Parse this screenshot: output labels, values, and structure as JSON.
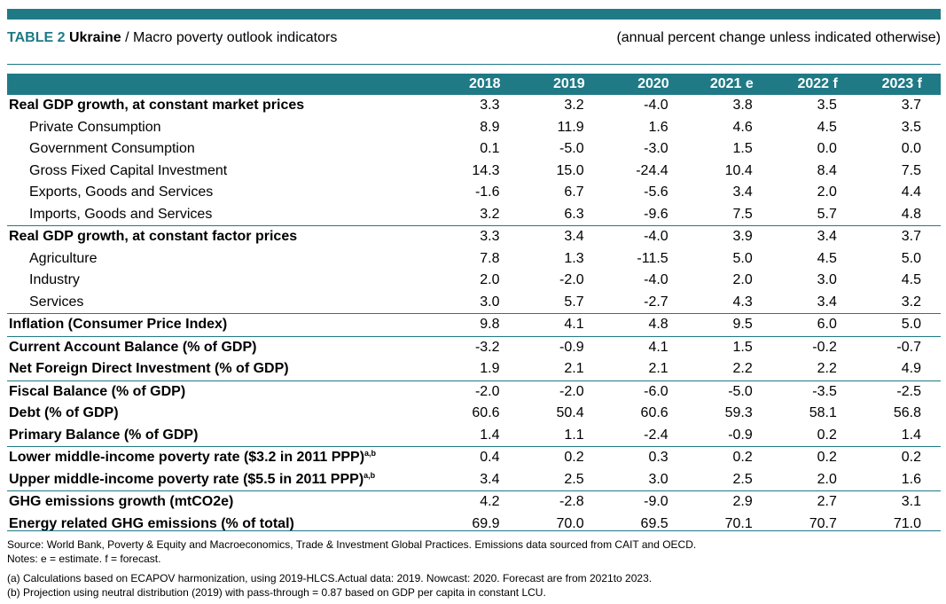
{
  "caption": {
    "table_label": "TABLE 2",
    "country": "Ukraine",
    "separator": " / ",
    "title": "Macro poverty outlook indicators",
    "units_note": "(annual percent change unless indicated otherwise)"
  },
  "columns": [
    "2018",
    "2019",
    "2020",
    "2021 e",
    "2022 f",
    "2023 f"
  ],
  "rows": [
    {
      "label": "Real GDP growth, at constant market prices",
      "sup": "",
      "values": [
        "3.3",
        "3.2",
        "-4.0",
        "3.8",
        "3.5",
        "3.7"
      ]
    },
    {
      "label": "Private Consumption",
      "sup": "",
      "values": [
        "8.9",
        "11.9",
        "1.6",
        "4.6",
        "4.5",
        "3.5"
      ]
    },
    {
      "label": "Government Consumption",
      "sup": "",
      "values": [
        "0.1",
        "-5.0",
        "-3.0",
        "1.5",
        "0.0",
        "0.0"
      ]
    },
    {
      "label": "Gross Fixed Capital Investment",
      "sup": "",
      "values": [
        "14.3",
        "15.0",
        "-24.4",
        "10.4",
        "8.4",
        "7.5"
      ]
    },
    {
      "label": "Exports, Goods and Services",
      "sup": "",
      "values": [
        "-1.6",
        "6.7",
        "-5.6",
        "3.4",
        "2.0",
        "4.4"
      ]
    },
    {
      "label": "Imports, Goods and Services",
      "sup": "",
      "values": [
        "3.2",
        "6.3",
        "-9.6",
        "7.5",
        "5.7",
        "4.8"
      ]
    },
    {
      "label": "Real GDP growth, at constant factor prices",
      "sup": "",
      "values": [
        "3.3",
        "3.4",
        "-4.0",
        "3.9",
        "3.4",
        "3.7"
      ]
    },
    {
      "label": "Agriculture",
      "sup": "",
      "values": [
        "7.8",
        "1.3",
        "-11.5",
        "5.0",
        "4.5",
        "5.0"
      ]
    },
    {
      "label": "Industry",
      "sup": "",
      "values": [
        "2.0",
        "-2.0",
        "-4.0",
        "2.0",
        "3.0",
        "4.5"
      ]
    },
    {
      "label": "Services",
      "sup": "",
      "values": [
        "3.0",
        "5.7",
        "-2.7",
        "4.3",
        "3.4",
        "3.2"
      ]
    },
    {
      "label": "Inflation (Consumer Price Index)",
      "sup": "",
      "values": [
        "9.8",
        "4.1",
        "4.8",
        "9.5",
        "6.0",
        "5.0"
      ]
    },
    {
      "label": "Current Account Balance (% of GDP)",
      "sup": "",
      "values": [
        "-3.2",
        "-0.9",
        "4.1",
        "1.5",
        "-0.2",
        "-0.7"
      ]
    },
    {
      "label": "Net Foreign Direct Investment (% of GDP)",
      "sup": "",
      "values": [
        "1.9",
        "2.1",
        "2.1",
        "2.2",
        "2.2",
        "4.9"
      ]
    },
    {
      "label": "Fiscal Balance (% of GDP)",
      "sup": "",
      "values": [
        "-2.0",
        "-2.0",
        "-6.0",
        "-5.0",
        "-3.5",
        "-2.5"
      ]
    },
    {
      "label": "Debt (% of GDP)",
      "sup": "",
      "values": [
        "60.6",
        "50.4",
        "60.6",
        "59.3",
        "58.1",
        "56.8"
      ]
    },
    {
      "label": "Primary Balance (% of GDP)",
      "sup": "",
      "values": [
        "1.4",
        "1.1",
        "-2.4",
        "-0.9",
        "0.2",
        "1.4"
      ]
    },
    {
      "label": "Lower middle-income poverty rate ($3.2 in 2011 PPP)",
      "sup": "a,b",
      "values": [
        "0.4",
        "0.2",
        "0.3",
        "0.2",
        "0.2",
        "0.2"
      ]
    },
    {
      "label": "Upper middle-income poverty rate ($5.5 in 2011 PPP)",
      "sup": "a,b",
      "values": [
        "3.4",
        "2.5",
        "3.0",
        "2.5",
        "2.0",
        "1.6"
      ]
    },
    {
      "label": "GHG emissions growth (mtCO2e)",
      "sup": "",
      "values": [
        "4.2",
        "-2.8",
        "-9.0",
        "2.9",
        "2.7",
        "3.1"
      ]
    },
    {
      "label": "Energy related GHG emissions (% of total)",
      "sup": "",
      "values": [
        "69.9",
        "70.0",
        "69.5",
        "70.1",
        "70.7",
        "71.0"
      ]
    }
  ],
  "notes": {
    "source": "Source: World Bank, Poverty & Equity and Macroeconomics, Trade & Investment Global Practices. Emissions data sourced from CAIT and OECD.",
    "abbrev": "Notes: e = estimate. f = forecast.",
    "note_a": "(a) Calculations based on ECAPOV harmonization, using 2019-HLCS.Actual data: 2019. Nowcast: 2020. Forecast are from 2021to 2023.",
    "note_b": "(b) Projection using neutral distribution (2019) with pass-through = 0.87 based on GDP per capita in constant LCU."
  },
  "colors": {
    "accent": "#1f7a86",
    "header_text": "#ffffff"
  }
}
